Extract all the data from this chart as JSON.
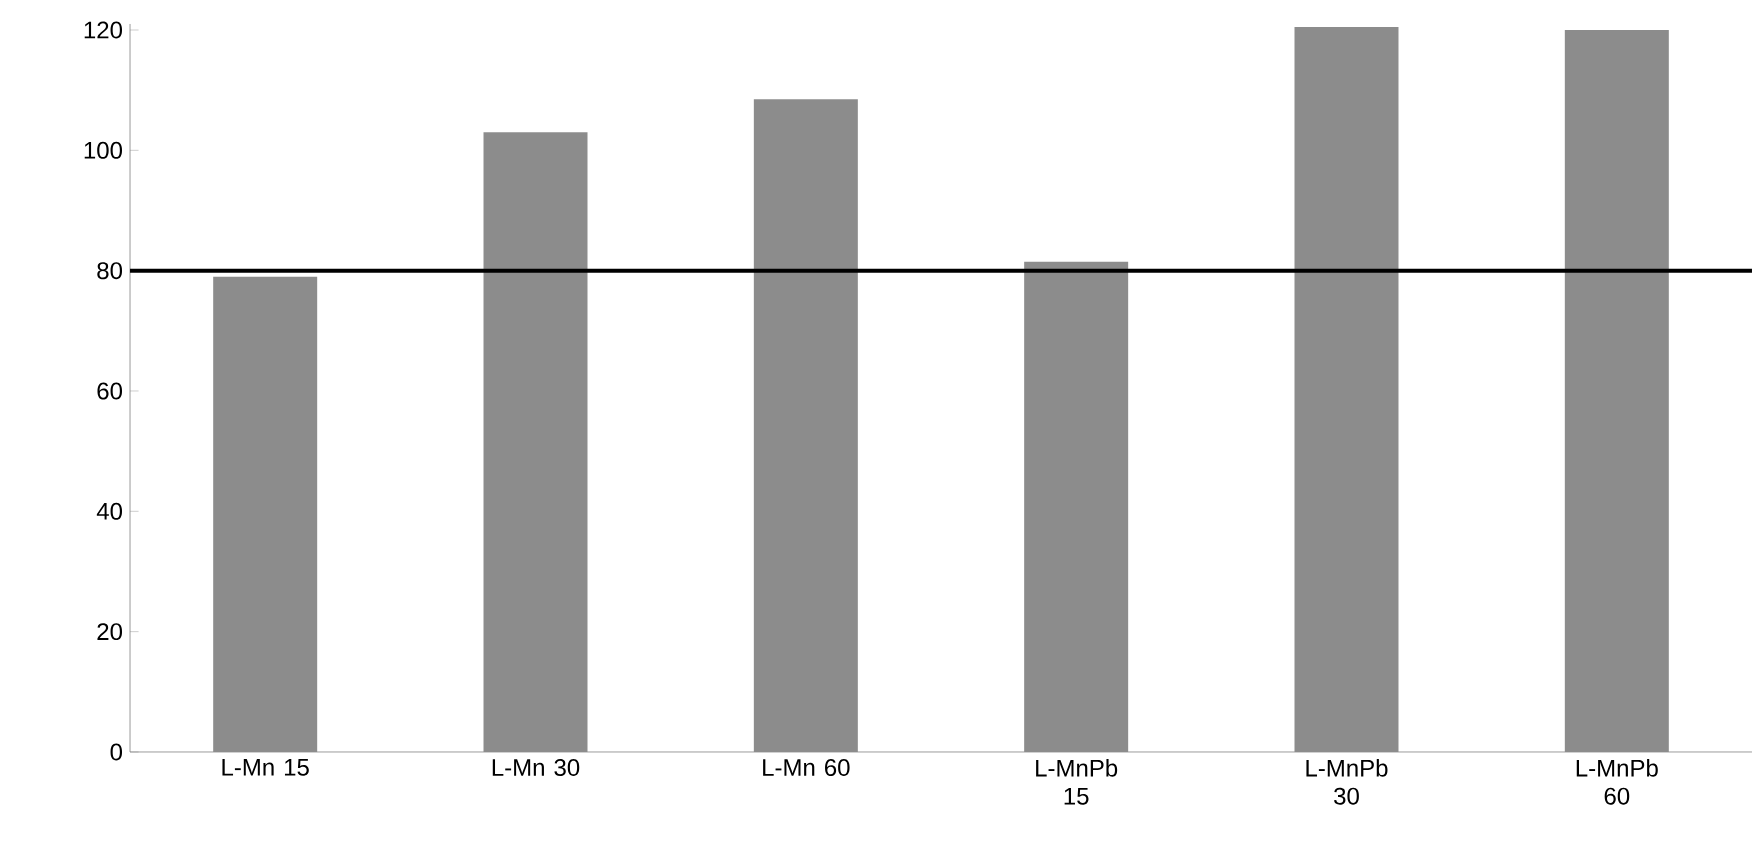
{
  "chart_data": {
    "type": "bar",
    "categories": [
      "L-Mn 15",
      "L-Mn 30",
      "L-Mn 60",
      "L-MnPb 15",
      "L-MnPb 30",
      "L-MnPb 60"
    ],
    "values": [
      79,
      103,
      108.5,
      81.5,
      120.5,
      120
    ],
    "color": "#8c8c8c",
    "ylim": [
      0,
      121
    ],
    "yticks": [
      0,
      20,
      40,
      60,
      80,
      100,
      120
    ],
    "ref_lines": [
      {
        "axis": "y",
        "value": 80,
        "color": "#000000"
      }
    ]
  }
}
